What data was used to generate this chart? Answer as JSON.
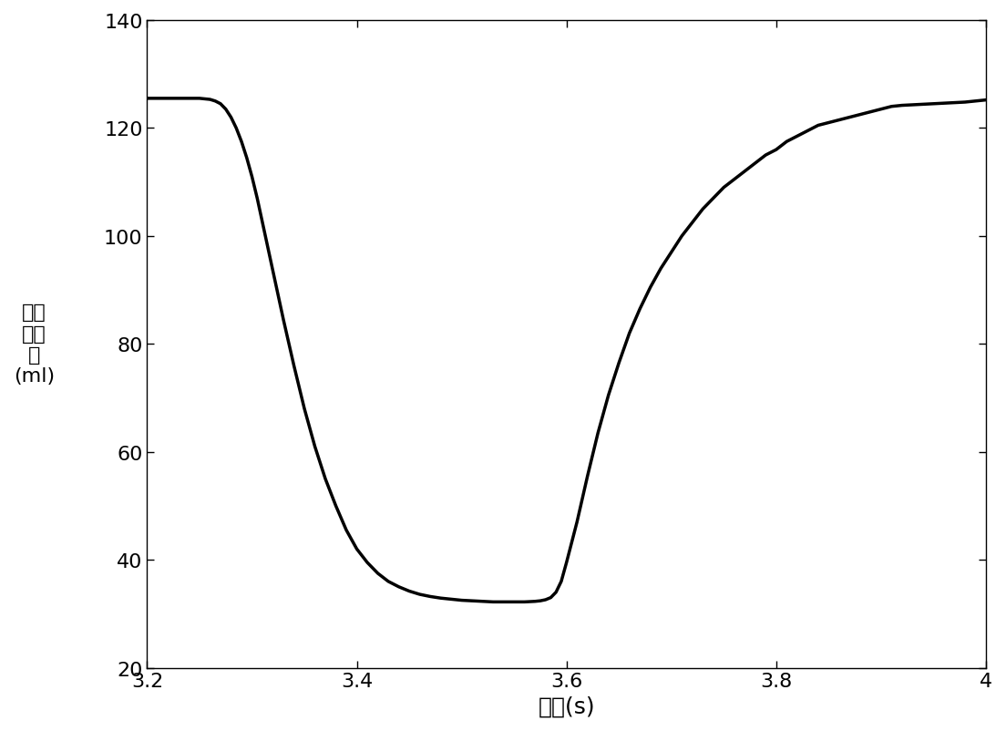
{
  "xlim": [
    3.2,
    4.0
  ],
  "ylim": [
    20,
    140
  ],
  "xticks": [
    3.2,
    3.4,
    3.6,
    3.8,
    4.0
  ],
  "yticks": [
    20,
    40,
    60,
    80,
    100,
    120,
    140
  ],
  "xlabel": "时间(s)",
  "ylabel_lines": [
    "左心",
    "室容",
    "积",
    "(ml)"
  ],
  "line_color": "#000000",
  "line_width": 2.5,
  "background_color": "#ffffff",
  "curve_points": {
    "x": [
      3.2,
      3.21,
      3.22,
      3.23,
      3.24,
      3.25,
      3.26,
      3.265,
      3.27,
      3.275,
      3.28,
      3.285,
      3.29,
      3.295,
      3.3,
      3.305,
      3.31,
      3.32,
      3.33,
      3.34,
      3.35,
      3.36,
      3.37,
      3.38,
      3.39,
      3.4,
      3.41,
      3.42,
      3.43,
      3.44,
      3.45,
      3.46,
      3.47,
      3.48,
      3.49,
      3.5,
      3.51,
      3.52,
      3.53,
      3.54,
      3.55,
      3.56,
      3.57,
      3.575,
      3.58,
      3.585,
      3.59,
      3.595,
      3.6,
      3.61,
      3.62,
      3.63,
      3.64,
      3.65,
      3.66,
      3.67,
      3.68,
      3.69,
      3.7,
      3.71,
      3.72,
      3.73,
      3.74,
      3.75,
      3.76,
      3.77,
      3.78,
      3.79,
      3.8,
      3.81,
      3.82,
      3.83,
      3.84,
      3.85,
      3.86,
      3.87,
      3.88,
      3.89,
      3.9,
      3.91,
      3.92,
      3.93,
      3.94,
      3.95,
      3.96,
      3.97,
      3.98,
      3.99,
      4.0
    ],
    "y": [
      125.5,
      125.5,
      125.5,
      125.5,
      125.5,
      125.5,
      125.3,
      125.0,
      124.5,
      123.5,
      122.0,
      120.0,
      117.5,
      114.5,
      111.0,
      107.0,
      102.5,
      93.5,
      84.5,
      76.0,
      68.0,
      61.0,
      55.0,
      50.0,
      45.5,
      42.0,
      39.5,
      37.5,
      36.0,
      35.0,
      34.2,
      33.6,
      33.2,
      32.9,
      32.7,
      32.5,
      32.4,
      32.3,
      32.2,
      32.2,
      32.2,
      32.2,
      32.3,
      32.4,
      32.6,
      33.0,
      34.0,
      36.0,
      39.5,
      47.0,
      55.5,
      63.5,
      70.5,
      76.5,
      82.0,
      86.5,
      90.5,
      94.0,
      97.0,
      100.0,
      102.5,
      105.0,
      107.0,
      109.0,
      110.5,
      112.0,
      113.5,
      115.0,
      116.0,
      117.5,
      118.5,
      119.5,
      120.5,
      121.0,
      121.5,
      122.0,
      122.5,
      123.0,
      123.5,
      124.0,
      124.2,
      124.3,
      124.4,
      124.5,
      124.6,
      124.7,
      124.8,
      125.0,
      125.2
    ]
  }
}
